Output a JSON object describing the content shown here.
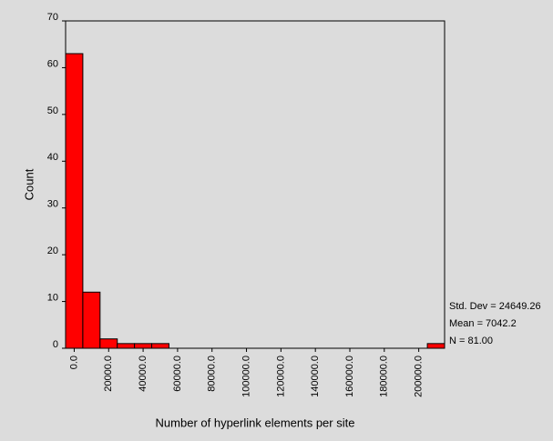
{
  "chart_data": {
    "type": "histogram",
    "xlabel": "Number of hyperlink elements per site",
    "ylabel": "Count",
    "bins": [
      -5000,
      5000,
      15000,
      25000,
      35000,
      45000,
      55000,
      65000,
      75000,
      85000,
      95000,
      105000,
      115000,
      125000,
      135000,
      145000,
      155000,
      165000,
      175000,
      185000,
      195000,
      205000,
      215000
    ],
    "values": [
      63,
      12,
      2,
      1,
      1,
      1,
      0,
      0,
      0,
      0,
      0,
      0,
      0,
      0,
      0,
      0,
      0,
      0,
      0,
      0,
      0,
      1
    ],
    "color": "#ff0000",
    "xlim": [
      -5000,
      215000
    ],
    "xticks": [
      {
        "value": 0,
        "label": "0.0"
      },
      {
        "value": 20000,
        "label": "20000.0"
      },
      {
        "value": 40000,
        "label": "40000.0"
      },
      {
        "value": 60000,
        "label": "60000.0"
      },
      {
        "value": 80000,
        "label": "80000.0"
      },
      {
        "value": 100000,
        "label": "100000.0"
      },
      {
        "value": 120000,
        "label": "120000.0"
      },
      {
        "value": 140000,
        "label": "140000.0"
      },
      {
        "value": 160000,
        "label": "160000.0"
      },
      {
        "value": 180000,
        "label": "180000.0"
      },
      {
        "value": 200000,
        "label": "200000.0"
      }
    ],
    "ylim": [
      0,
      70
    ],
    "yticks": [
      0,
      10,
      20,
      30,
      40,
      50,
      60,
      70
    ],
    "annotations": [
      "Std. Dev = 24649.26",
      "Mean = 7042.2",
      "N = 81.00"
    ]
  }
}
